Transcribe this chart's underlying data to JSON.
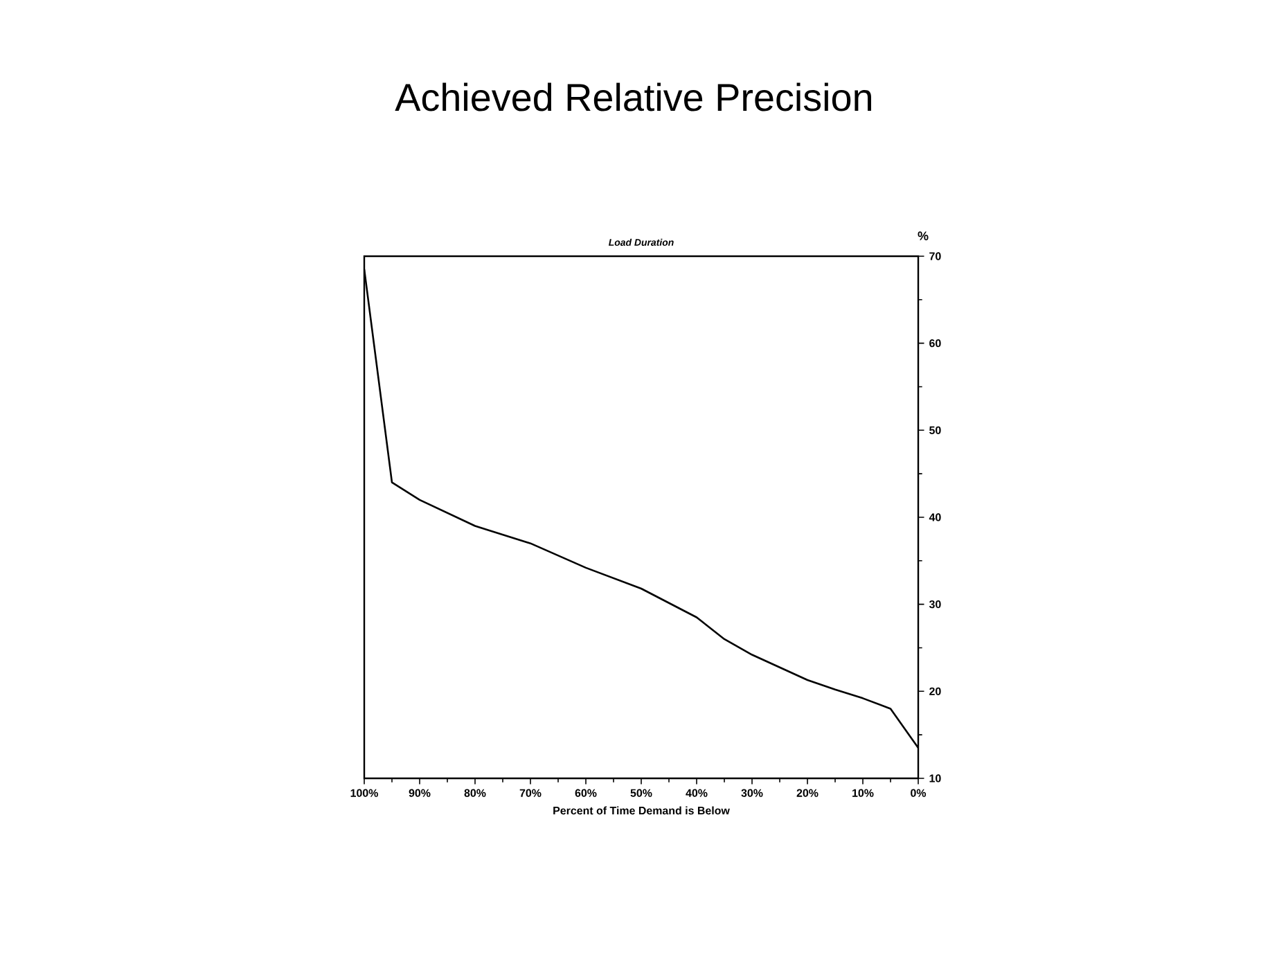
{
  "chart_data": {
    "type": "line",
    "title": "Achieved Relative Precision",
    "subtitle": "Load Duration",
    "xlabel": "Percent of Time Demand is Below",
    "ylabel": "%",
    "x": [
      100,
      95,
      90,
      80,
      70,
      65,
      60,
      50,
      40,
      35,
      30,
      20,
      15,
      10,
      5,
      0
    ],
    "series": [
      {
        "color": "#000000",
        "values": [
          68.5,
          44,
          42,
          39,
          37,
          35.6,
          34.2,
          31.8,
          28.5,
          26,
          24.2,
          21.3,
          20.2,
          19.2,
          18,
          13.5
        ]
      }
    ],
    "xlim": [
      100,
      0
    ],
    "xticks": [
      {
        "value": 100,
        "label": "100%"
      },
      {
        "value": 90,
        "label": "90%"
      },
      {
        "value": 80,
        "label": "80%"
      },
      {
        "value": 70,
        "label": "70%"
      },
      {
        "value": 60,
        "label": "60%"
      },
      {
        "value": 50,
        "label": "50%"
      },
      {
        "value": 40,
        "label": "40%"
      },
      {
        "value": 30,
        "label": "30%"
      },
      {
        "value": 20,
        "label": "20%"
      },
      {
        "value": 10,
        "label": "10%"
      },
      {
        "value": 0,
        "label": "0%"
      }
    ],
    "ylim": [
      10,
      70
    ],
    "yticks": [
      10,
      20,
      30,
      40,
      50,
      60,
      70
    ],
    "grid": false,
    "marker": "none",
    "line_style": "solid"
  }
}
